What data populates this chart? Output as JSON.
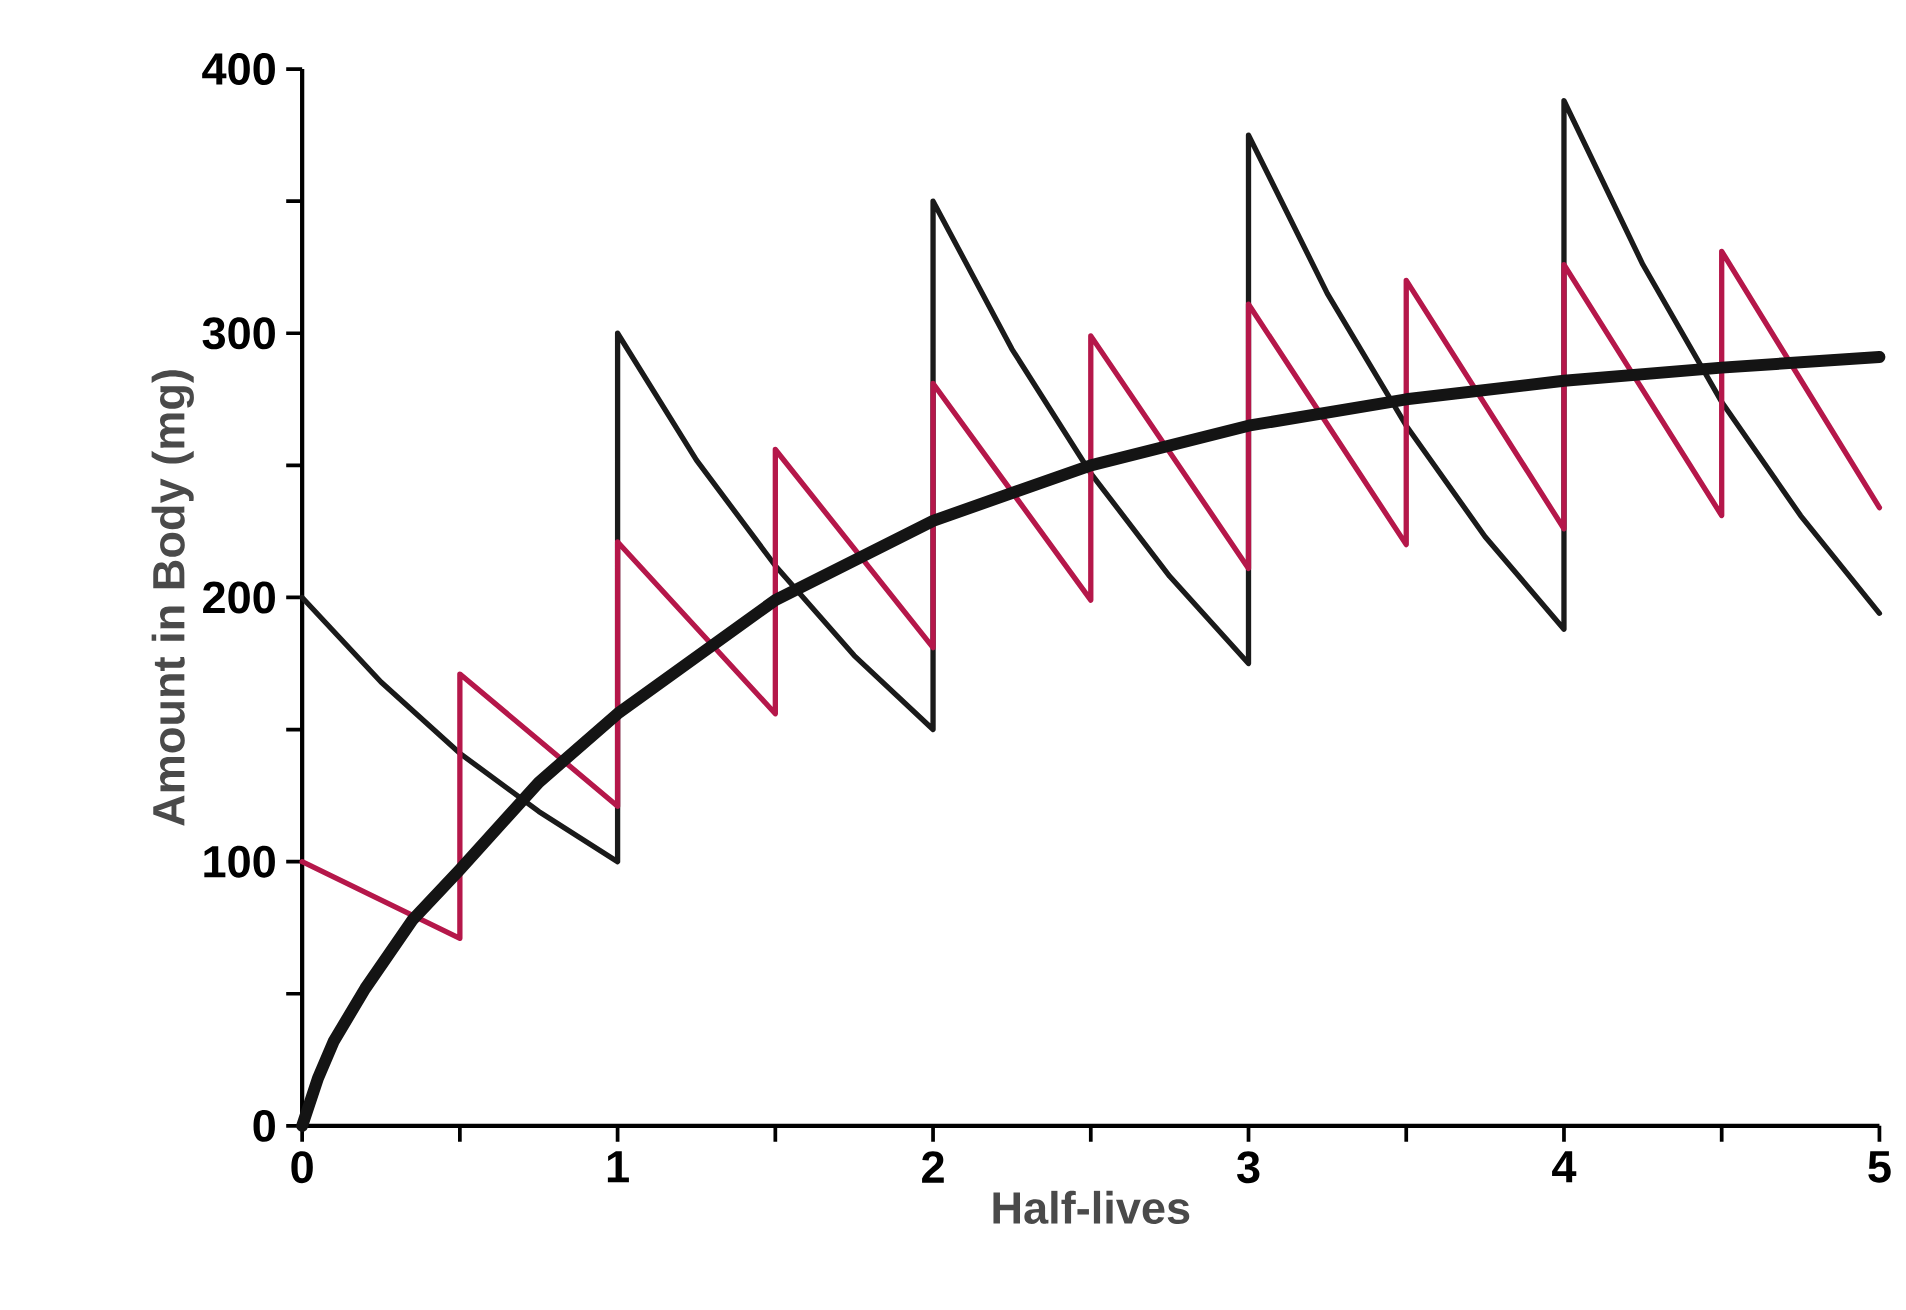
{
  "chart_data": {
    "type": "line",
    "xlabel": "Half-lives",
    "ylabel": "Amount in Body (mg)",
    "xlim": [
      0,
      5
    ],
    "ylim": [
      0,
      400
    ],
    "xticks": [
      0,
      {
        "value": 0.5,
        "label": null
      },
      1,
      {
        "value": 1.5,
        "label": null
      },
      2,
      {
        "value": 2.5,
        "label": null
      },
      3,
      {
        "value": 3.5,
        "label": null
      },
      4,
      {
        "value": 4.5,
        "label": null
      },
      5
    ],
    "yticks": [
      0,
      {
        "value": 50,
        "label": null
      },
      100,
      {
        "value": 150,
        "label": null
      },
      200,
      {
        "value": 250,
        "label": null
      },
      300,
      {
        "value": 350,
        "label": null
      },
      400
    ],
    "grid": false,
    "marker": "none",
    "line_style": "solid",
    "series": [
      {
        "color": "#1a1a1a",
        "x": [
          0,
          0.25,
          0.5,
          0.75,
          1,
          1,
          1.25,
          1.5,
          1.75,
          2,
          2,
          2.25,
          2.5,
          2.75,
          3,
          3,
          3.25,
          3.5,
          3.75,
          4,
          4,
          4.25,
          4.5,
          4.75,
          5
        ],
        "values": [
          200,
          168,
          141,
          119,
          100,
          300,
          252,
          212,
          178,
          150,
          350,
          294,
          247,
          208,
          175,
          375,
          315,
          265,
          223,
          188,
          388,
          326,
          274,
          231,
          194
        ]
      },
      {
        "color": "#b5174a",
        "x": [
          0,
          0.5,
          0.5,
          1,
          1,
          1.5,
          1.5,
          2,
          2,
          2.5,
          2.5,
          3,
          3,
          3.5,
          3.5,
          4,
          4,
          4.5,
          4.5,
          5
        ],
        "values": [
          100,
          71,
          171,
          121,
          221,
          156,
          256,
          181,
          281,
          199,
          299,
          211,
          311,
          220,
          320,
          226,
          326,
          231,
          331,
          234
        ]
      },
      {
        "color": "#141414",
        "x": [
          0,
          0.05,
          0.1,
          0.2,
          0.35,
          0.5,
          0.75,
          1,
          1.5,
          2,
          2.5,
          3,
          3.5,
          4,
          4.5,
          5
        ],
        "values": [
          0,
          18,
          32,
          52,
          78,
          97,
          130,
          156,
          199,
          229,
          250,
          265,
          275,
          282,
          287,
          291
        ]
      }
    ]
  }
}
